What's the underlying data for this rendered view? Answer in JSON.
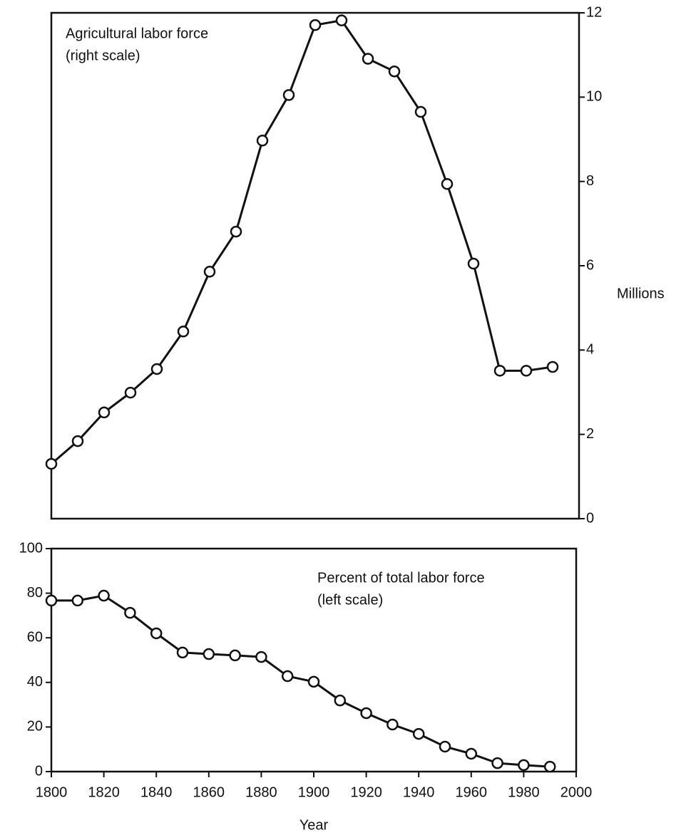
{
  "chart_data": [
    {
      "type": "line",
      "annotation": [
        "Agricultural labor force",
        "(right scale)"
      ],
      "y2label": "Millions",
      "x": [
        1800,
        1810,
        1820,
        1830,
        1840,
        1850,
        1860,
        1870,
        1880,
        1890,
        1900,
        1910,
        1920,
        1930,
        1940,
        1950,
        1960,
        1970,
        1980,
        1990
      ],
      "series": [
        {
          "axis": "y2",
          "color": "#111111",
          "values": [
            1.3,
            1.84,
            2.52,
            2.99,
            3.55,
            4.44,
            5.86,
            6.81,
            8.97,
            10.05,
            11.71,
            11.82,
            10.91,
            10.61,
            9.65,
            7.94,
            6.05,
            3.51,
            3.51,
            3.6
          ]
        }
      ],
      "xlim": [
        1800,
        2000
      ],
      "y2lim": [
        0,
        12
      ],
      "y2ticks": [
        0,
        2,
        4,
        6,
        8,
        10,
        12
      ]
    },
    {
      "type": "line",
      "annotation": [
        "Percent of total labor force",
        "(left scale)"
      ],
      "xlabel": "Year",
      "x": [
        1800,
        1810,
        1820,
        1830,
        1840,
        1850,
        1860,
        1870,
        1880,
        1890,
        1900,
        1910,
        1920,
        1930,
        1940,
        1950,
        1960,
        1970,
        1980,
        1990
      ],
      "series": [
        {
          "color": "#111111",
          "values": [
            76.7,
            76.7,
            78.9,
            71.2,
            62,
            53.4,
            52.7,
            52.1,
            51.4,
            42.8,
            40.3,
            31.9,
            26.2,
            21.1,
            16.9,
            11.2,
            8,
            3.8,
            2.9,
            2.2
          ]
        }
      ],
      "xlim": [
        1800,
        2000
      ],
      "xticks": [
        1800,
        1820,
        1840,
        1860,
        1880,
        1900,
        1920,
        1940,
        1960,
        1980,
        2000
      ],
      "ylim": [
        0,
        100
      ],
      "yticks": [
        0,
        20,
        40,
        60,
        80,
        100
      ]
    }
  ]
}
